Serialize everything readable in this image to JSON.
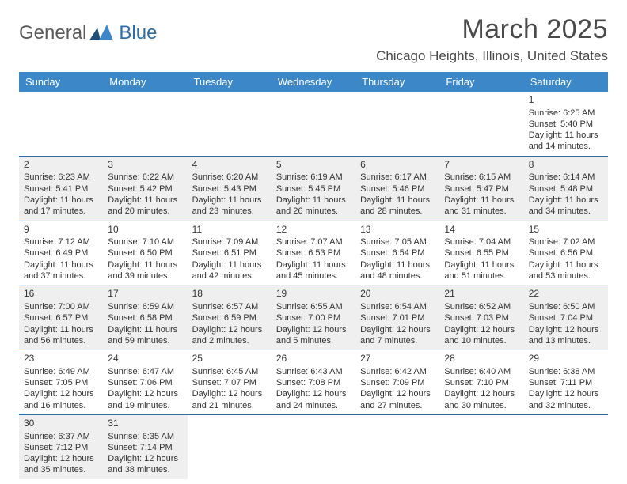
{
  "logo": {
    "text1": "General",
    "text2": "Blue"
  },
  "title": "March 2025",
  "location": "Chicago Heights, Illinois, United States",
  "colors": {
    "header_bg": "#3b87c8",
    "header_text": "#ffffff",
    "cell_border": "#2d6ea8",
    "shaded_bg": "#efefef",
    "text": "#333333",
    "logo_gray": "#5a5a5a",
    "logo_blue": "#2d6ea8"
  },
  "weekdays": [
    "Sunday",
    "Monday",
    "Tuesday",
    "Wednesday",
    "Thursday",
    "Friday",
    "Saturday"
  ],
  "weeks": [
    [
      null,
      null,
      null,
      null,
      null,
      null,
      {
        "n": "1",
        "sr": "Sunrise: 6:25 AM",
        "ss": "Sunset: 5:40 PM",
        "dl": "Daylight: 11 hours and 14 minutes."
      }
    ],
    [
      {
        "n": "2",
        "sr": "Sunrise: 6:23 AM",
        "ss": "Sunset: 5:41 PM",
        "dl": "Daylight: 11 hours and 17 minutes."
      },
      {
        "n": "3",
        "sr": "Sunrise: 6:22 AM",
        "ss": "Sunset: 5:42 PM",
        "dl": "Daylight: 11 hours and 20 minutes."
      },
      {
        "n": "4",
        "sr": "Sunrise: 6:20 AM",
        "ss": "Sunset: 5:43 PM",
        "dl": "Daylight: 11 hours and 23 minutes."
      },
      {
        "n": "5",
        "sr": "Sunrise: 6:19 AM",
        "ss": "Sunset: 5:45 PM",
        "dl": "Daylight: 11 hours and 26 minutes."
      },
      {
        "n": "6",
        "sr": "Sunrise: 6:17 AM",
        "ss": "Sunset: 5:46 PM",
        "dl": "Daylight: 11 hours and 28 minutes."
      },
      {
        "n": "7",
        "sr": "Sunrise: 6:15 AM",
        "ss": "Sunset: 5:47 PM",
        "dl": "Daylight: 11 hours and 31 minutes."
      },
      {
        "n": "8",
        "sr": "Sunrise: 6:14 AM",
        "ss": "Sunset: 5:48 PM",
        "dl": "Daylight: 11 hours and 34 minutes."
      }
    ],
    [
      {
        "n": "9",
        "sr": "Sunrise: 7:12 AM",
        "ss": "Sunset: 6:49 PM",
        "dl": "Daylight: 11 hours and 37 minutes."
      },
      {
        "n": "10",
        "sr": "Sunrise: 7:10 AM",
        "ss": "Sunset: 6:50 PM",
        "dl": "Daylight: 11 hours and 39 minutes."
      },
      {
        "n": "11",
        "sr": "Sunrise: 7:09 AM",
        "ss": "Sunset: 6:51 PM",
        "dl": "Daylight: 11 hours and 42 minutes."
      },
      {
        "n": "12",
        "sr": "Sunrise: 7:07 AM",
        "ss": "Sunset: 6:53 PM",
        "dl": "Daylight: 11 hours and 45 minutes."
      },
      {
        "n": "13",
        "sr": "Sunrise: 7:05 AM",
        "ss": "Sunset: 6:54 PM",
        "dl": "Daylight: 11 hours and 48 minutes."
      },
      {
        "n": "14",
        "sr": "Sunrise: 7:04 AM",
        "ss": "Sunset: 6:55 PM",
        "dl": "Daylight: 11 hours and 51 minutes."
      },
      {
        "n": "15",
        "sr": "Sunrise: 7:02 AM",
        "ss": "Sunset: 6:56 PM",
        "dl": "Daylight: 11 hours and 53 minutes."
      }
    ],
    [
      {
        "n": "16",
        "sr": "Sunrise: 7:00 AM",
        "ss": "Sunset: 6:57 PM",
        "dl": "Daylight: 11 hours and 56 minutes."
      },
      {
        "n": "17",
        "sr": "Sunrise: 6:59 AM",
        "ss": "Sunset: 6:58 PM",
        "dl": "Daylight: 11 hours and 59 minutes."
      },
      {
        "n": "18",
        "sr": "Sunrise: 6:57 AM",
        "ss": "Sunset: 6:59 PM",
        "dl": "Daylight: 12 hours and 2 minutes."
      },
      {
        "n": "19",
        "sr": "Sunrise: 6:55 AM",
        "ss": "Sunset: 7:00 PM",
        "dl": "Daylight: 12 hours and 5 minutes."
      },
      {
        "n": "20",
        "sr": "Sunrise: 6:54 AM",
        "ss": "Sunset: 7:01 PM",
        "dl": "Daylight: 12 hours and 7 minutes."
      },
      {
        "n": "21",
        "sr": "Sunrise: 6:52 AM",
        "ss": "Sunset: 7:03 PM",
        "dl": "Daylight: 12 hours and 10 minutes."
      },
      {
        "n": "22",
        "sr": "Sunrise: 6:50 AM",
        "ss": "Sunset: 7:04 PM",
        "dl": "Daylight: 12 hours and 13 minutes."
      }
    ],
    [
      {
        "n": "23",
        "sr": "Sunrise: 6:49 AM",
        "ss": "Sunset: 7:05 PM",
        "dl": "Daylight: 12 hours and 16 minutes."
      },
      {
        "n": "24",
        "sr": "Sunrise: 6:47 AM",
        "ss": "Sunset: 7:06 PM",
        "dl": "Daylight: 12 hours and 19 minutes."
      },
      {
        "n": "25",
        "sr": "Sunrise: 6:45 AM",
        "ss": "Sunset: 7:07 PM",
        "dl": "Daylight: 12 hours and 21 minutes."
      },
      {
        "n": "26",
        "sr": "Sunrise: 6:43 AM",
        "ss": "Sunset: 7:08 PM",
        "dl": "Daylight: 12 hours and 24 minutes."
      },
      {
        "n": "27",
        "sr": "Sunrise: 6:42 AM",
        "ss": "Sunset: 7:09 PM",
        "dl": "Daylight: 12 hours and 27 minutes."
      },
      {
        "n": "28",
        "sr": "Sunrise: 6:40 AM",
        "ss": "Sunset: 7:10 PM",
        "dl": "Daylight: 12 hours and 30 minutes."
      },
      {
        "n": "29",
        "sr": "Sunrise: 6:38 AM",
        "ss": "Sunset: 7:11 PM",
        "dl": "Daylight: 12 hours and 32 minutes."
      }
    ],
    [
      {
        "n": "30",
        "sr": "Sunrise: 6:37 AM",
        "ss": "Sunset: 7:12 PM",
        "dl": "Daylight: 12 hours and 35 minutes."
      },
      {
        "n": "31",
        "sr": "Sunrise: 6:35 AM",
        "ss": "Sunset: 7:14 PM",
        "dl": "Daylight: 12 hours and 38 minutes."
      },
      null,
      null,
      null,
      null,
      null
    ]
  ]
}
